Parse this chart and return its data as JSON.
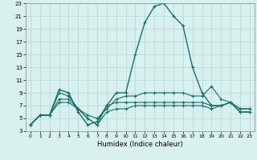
{
  "xlabel": "Humidex (Indice chaleur)",
  "xlim": [
    -0.5,
    23.5
  ],
  "ylim": [
    3,
    23
  ],
  "xticks": [
    0,
    1,
    2,
    3,
    4,
    5,
    6,
    7,
    8,
    9,
    10,
    11,
    12,
    13,
    14,
    15,
    16,
    17,
    18,
    19,
    20,
    21,
    22,
    23
  ],
  "yticks": [
    3,
    5,
    7,
    9,
    11,
    13,
    15,
    17,
    19,
    21,
    23
  ],
  "bg_color": "#d8f0ee",
  "grid_color": "#b0d8d4",
  "line_color": "#1a6e6e",
  "lines": [
    [
      4,
      5.5,
      5.5,
      9.5,
      9,
      6,
      4,
      4.5,
      7,
      9,
      9,
      15,
      20,
      22.5,
      23,
      21,
      19.5,
      13,
      9,
      7,
      7,
      7.5,
      6,
      6
    ],
    [
      4,
      5.5,
      5.5,
      9,
      8.5,
      6.5,
      5.5,
      5,
      6.5,
      8,
      8.5,
      8.5,
      9,
      9,
      9,
      9,
      9,
      8.5,
      8.5,
      10,
      8,
      7.5,
      6.5,
      6.5
    ],
    [
      4,
      5.5,
      5.5,
      8,
      8,
      6.5,
      5,
      4,
      7,
      7.5,
      7.5,
      7.5,
      7.5,
      7.5,
      7.5,
      7.5,
      7.5,
      7.5,
      7.5,
      7,
      7,
      7.5,
      6.5,
      6.5
    ],
    [
      4,
      5.5,
      5.5,
      7.5,
      7.5,
      6.5,
      5,
      4,
      6,
      6.5,
      6.5,
      7,
      7,
      7,
      7,
      7,
      7,
      7,
      7,
      6.5,
      7,
      7.5,
      6,
      6
    ]
  ]
}
